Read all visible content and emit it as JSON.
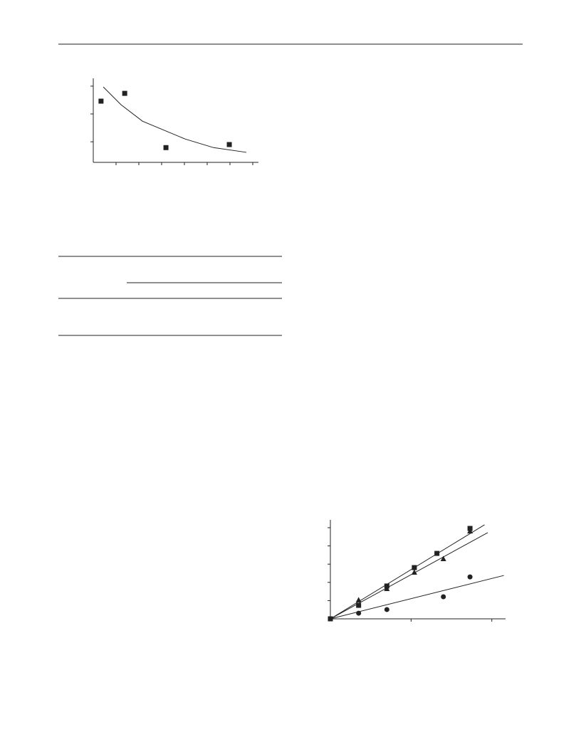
{
  "chart_data": [
    {
      "type": "scatter",
      "xlim": [
        0,
        7.25
      ],
      "xticks": [
        1,
        2,
        3,
        4,
        5,
        6,
        7
      ],
      "ylim": [
        0.26,
        3.28
      ],
      "yticks": [
        1,
        2,
        3
      ],
      "series": [
        {
          "style": "points",
          "marker": "square",
          "color": "#222222",
          "x": [
            0.34,
            1.38,
            3.19,
            5.97
          ],
          "values": [
            2.46,
            2.74,
            0.79,
            0.9
          ]
        },
        {
          "style": "line",
          "color": "#222222",
          "x": [
            0.44,
            1.22,
            2.16,
            4.03,
            5.28,
            6.72
          ],
          "values": [
            2.97,
            2.33,
            1.74,
            1.1,
            0.79,
            0.62
          ]
        }
      ]
    },
    {
      "type": "scatter",
      "xlim": [
        0,
        2.17
      ],
      "xticks": [
        1,
        2
      ],
      "ylim": [
        0,
        5.43
      ],
      "yticks": [
        1,
        2,
        3,
        4,
        5
      ],
      "series": [
        {
          "style": "points",
          "marker": "square",
          "color": "#222222",
          "x": [
            0,
            0.35,
            0.7,
            1.04,
            1.32,
            1.73
          ],
          "values": [
            0,
            0.74,
            1.8,
            2.81,
            3.59,
            4.96
          ]
        },
        {
          "style": "points",
          "marker": "triangle",
          "color": "#222222",
          "x": [
            0.35,
            0.7,
            1.04,
            1.4,
            1.73
          ],
          "values": [
            1.02,
            1.64,
            2.54,
            3.28,
            4.8
          ]
        },
        {
          "style": "points",
          "marker": "circle",
          "color": "#222222",
          "x": [
            0.35,
            0.7,
            1.4,
            1.73
          ],
          "values": [
            0.31,
            0.51,
            1.21,
            2.3
          ]
        },
        {
          "style": "line",
          "color": "#222222",
          "x": [
            0,
            1.91
          ],
          "values": [
            0,
            5.16
          ]
        },
        {
          "style": "line",
          "color": "#222222",
          "x": [
            0,
            1.95
          ],
          "values": [
            0,
            4.73
          ]
        },
        {
          "style": "line",
          "color": "#222222",
          "x": [
            0,
            2.15
          ],
          "values": [
            0,
            2.38
          ]
        }
      ]
    }
  ]
}
